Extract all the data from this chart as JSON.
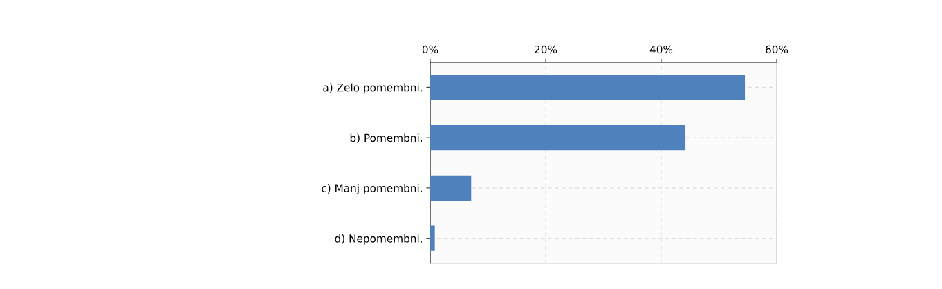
{
  "chart_data": {
    "type": "bar",
    "orientation": "horizontal",
    "categories": [
      "a) Zelo pomembni.",
      "b) Pomembni.",
      "c) Manj pomembni.",
      "d) Nepomembni."
    ],
    "values": [
      54.5,
      44.2,
      7.1,
      0.8
    ],
    "color": "#4f81bd",
    "xlim": [
      0,
      60
    ],
    "xticks": [
      {
        "value": 0,
        "label": "0%"
      },
      {
        "value": 20,
        "label": "20%"
      },
      {
        "value": 40,
        "label": "40%"
      },
      {
        "value": 60,
        "label": "60%"
      }
    ],
    "grid": true,
    "legend": false
  }
}
